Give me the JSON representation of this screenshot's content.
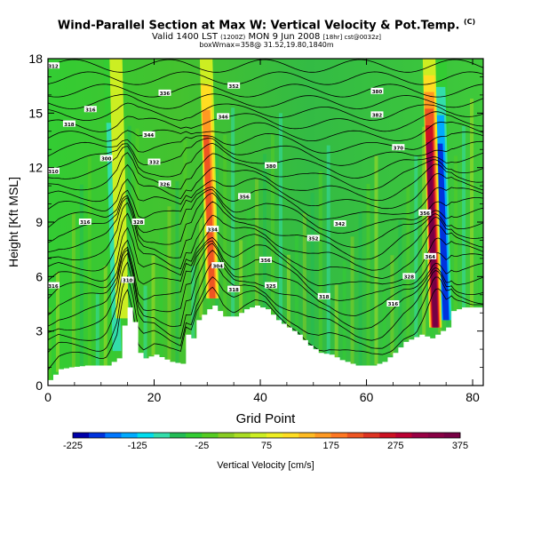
{
  "title": {
    "main": "Wind-Parallel Section at Max W: Vertical Velocity & Pot.Temp.",
    "main_mark": "(C)",
    "valid_prefix": "Valid 1400 LST",
    "valid_utc": "(1200Z)",
    "valid_date": "MON 9 Jun 2008",
    "valid_run": "[18hr] cst@0032z]",
    "box_info": "boxWmax=358@ 31.52,19.80,1840m"
  },
  "chart_data": {
    "type": "heatmap",
    "xlabel": "Grid Point",
    "ylabel": "Height [Kft MSL]",
    "xlim": [
      0,
      82
    ],
    "ylim": [
      0,
      18
    ],
    "x_ticks": [
      0,
      20,
      40,
      60,
      80
    ],
    "y_ticks": [
      0,
      3,
      6,
      9,
      12,
      15,
      18
    ],
    "colorbar": {
      "label": "Vertical Velocity [cm/s]",
      "tick_labels": [
        -225,
        -125,
        -25,
        75,
        175,
        275,
        375
      ],
      "min": -225,
      "max": 375,
      "step": 25,
      "colors": [
        "#0000aa",
        "#0033dd",
        "#0077ff",
        "#00aaff",
        "#00ddee",
        "#33ddaa",
        "#22bb55",
        "#33cc33",
        "#55cc22",
        "#88cc22",
        "#aadd22",
        "#ccee22",
        "#eeee22",
        "#ffdd22",
        "#ffbb22",
        "#ff9922",
        "#ff7722",
        "#ee5522",
        "#dd3322",
        "#cc1122",
        "#bb0033",
        "#990044",
        "#880044",
        "#770044"
      ]
    },
    "updraft_columns": [
      {
        "x": 14,
        "peak_cm_s": 60
      },
      {
        "x": 31,
        "peak_cm_s": 200
      },
      {
        "x": 73,
        "peak_cm_s": 358
      }
    ],
    "downdraft_columns": [
      {
        "x": 13,
        "min_cm_s": -125
      },
      {
        "x": 75,
        "min_cm_s": -225
      }
    ],
    "terrain_kft": {
      "x": [
        0,
        1,
        2,
        4,
        7,
        11,
        13,
        14,
        15,
        16,
        17,
        18,
        20,
        23,
        25,
        26,
        27,
        28,
        30,
        31,
        33,
        35,
        37,
        39,
        41,
        43,
        45,
        47,
        49,
        51,
        53,
        55,
        58,
        61,
        63,
        65,
        67,
        70,
        72,
        74,
        75,
        76,
        78,
        80,
        82
      ],
      "height": [
        0.3,
        0.6,
        0.9,
        1.0,
        1.1,
        1.1,
        1.5,
        3.3,
        4.3,
        3.5,
        1.8,
        1.5,
        1.7,
        1.3,
        1.2,
        2.8,
        2.6,
        3.6,
        4.2,
        4.4,
        3.8,
        3.8,
        4.2,
        4.4,
        4.2,
        3.6,
        3.2,
        2.8,
        2.2,
        1.8,
        1.7,
        1.4,
        1.1,
        1.1,
        1.3,
        1.8,
        2.4,
        2.8,
        2.6,
        3.0,
        3.2,
        4.1,
        4.3,
        4.3,
        4.3
      ]
    },
    "isentrope_labels": [
      {
        "x": 1,
        "y": 17.6,
        "text": "312"
      },
      {
        "x": 8,
        "y": 15.2,
        "text": "316"
      },
      {
        "x": 4,
        "y": 14.4,
        "text": "318"
      },
      {
        "x": 11,
        "y": 12.5,
        "text": "300"
      },
      {
        "x": 1,
        "y": 11.8,
        "text": "310"
      },
      {
        "x": 7,
        "y": 9.0,
        "text": "316"
      },
      {
        "x": 1,
        "y": 5.5,
        "text": "316"
      },
      {
        "x": 19,
        "y": 13.8,
        "text": "344"
      },
      {
        "x": 22,
        "y": 16.1,
        "text": "336"
      },
      {
        "x": 20,
        "y": 12.3,
        "text": "332"
      },
      {
        "x": 22,
        "y": 11.1,
        "text": "326"
      },
      {
        "x": 17,
        "y": 9.0,
        "text": "328"
      },
      {
        "x": 15,
        "y": 5.8,
        "text": "310"
      },
      {
        "x": 35,
        "y": 16.5,
        "text": "352"
      },
      {
        "x": 33,
        "y": 14.8,
        "text": "346"
      },
      {
        "x": 37,
        "y": 10.4,
        "text": "356"
      },
      {
        "x": 42,
        "y": 12.1,
        "text": "380"
      },
      {
        "x": 31,
        "y": 8.6,
        "text": "334"
      },
      {
        "x": 32,
        "y": 6.6,
        "text": "304"
      },
      {
        "x": 35,
        "y": 5.3,
        "text": "318"
      },
      {
        "x": 41,
        "y": 6.9,
        "text": "356"
      },
      {
        "x": 42,
        "y": 5.5,
        "text": "325"
      },
      {
        "x": 50,
        "y": 8.1,
        "text": "352"
      },
      {
        "x": 55,
        "y": 8.9,
        "text": "342"
      },
      {
        "x": 52,
        "y": 4.9,
        "text": "318"
      },
      {
        "x": 62,
        "y": 16.2,
        "text": "380"
      },
      {
        "x": 62,
        "y": 14.9,
        "text": "382"
      },
      {
        "x": 66,
        "y": 13.1,
        "text": "370"
      },
      {
        "x": 71,
        "y": 9.5,
        "text": "356"
      },
      {
        "x": 68,
        "y": 6.0,
        "text": "328"
      },
      {
        "x": 65,
        "y": 4.5,
        "text": "316"
      },
      {
        "x": 72,
        "y": 7.1,
        "text": "364"
      }
    ]
  }
}
